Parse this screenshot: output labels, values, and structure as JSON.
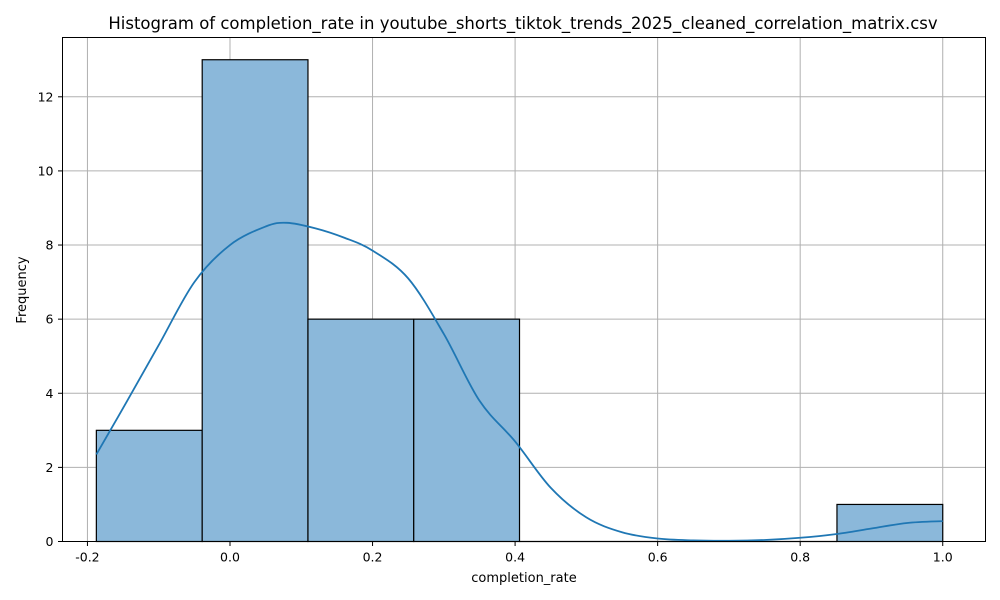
{
  "chart_data": {
    "type": "bar",
    "title": "Histogram of completion_rate in youtube_shorts_tiktok_trends_2025_cleaned_correlation_matrix.csv",
    "xlabel": "completion_rate",
    "ylabel": "Frequency",
    "xlim": [
      -0.235,
      1.06
    ],
    "ylim": [
      0,
      13.6
    ],
    "grid": true,
    "x_ticks": [
      -0.2,
      0.0,
      0.2,
      0.4,
      0.6,
      0.8,
      1.0
    ],
    "x_tick_labels": [
      "-0.2",
      "0.0",
      "0.2",
      "0.4",
      "0.6",
      "0.8",
      "1.0"
    ],
    "y_ticks": [
      0,
      2,
      4,
      6,
      8,
      10,
      12
    ],
    "y_tick_labels": [
      "0",
      "2",
      "4",
      "6",
      "8",
      "10",
      "12"
    ],
    "bins": [
      {
        "x0": -0.1875,
        "x1": -0.039,
        "count": 3
      },
      {
        "x0": -0.039,
        "x1": 0.1094,
        "count": 13
      },
      {
        "x0": 0.1094,
        "x1": 0.2578,
        "count": 6
      },
      {
        "x0": 0.2578,
        "x1": 0.4062,
        "count": 6
      },
      {
        "x0": 0.4062,
        "x1": 0.5547,
        "count": 0
      },
      {
        "x0": 0.5547,
        "x1": 0.7031,
        "count": 0
      },
      {
        "x0": 0.7031,
        "x1": 0.8516,
        "count": 0
      },
      {
        "x0": 0.8516,
        "x1": 1.0,
        "count": 1
      }
    ],
    "kde": {
      "x": [
        -0.1875,
        -0.15,
        -0.1,
        -0.05,
        0.0,
        0.05,
        0.08,
        0.12,
        0.16,
        0.2,
        0.25,
        0.3,
        0.35,
        0.4,
        0.45,
        0.5,
        0.55,
        0.6,
        0.65,
        0.7,
        0.75,
        0.8,
        0.85,
        0.9,
        0.95,
        1.0
      ],
      "y": [
        2.35,
        3.6,
        5.3,
        7.0,
        8.0,
        8.5,
        8.6,
        8.45,
        8.2,
        7.85,
        7.1,
        5.6,
        3.8,
        2.7,
        1.45,
        0.65,
        0.25,
        0.08,
        0.03,
        0.02,
        0.04,
        0.1,
        0.2,
        0.35,
        0.5,
        0.55
      ],
      "color": "#1f77b4"
    },
    "bar_color": "#8bb8da"
  }
}
